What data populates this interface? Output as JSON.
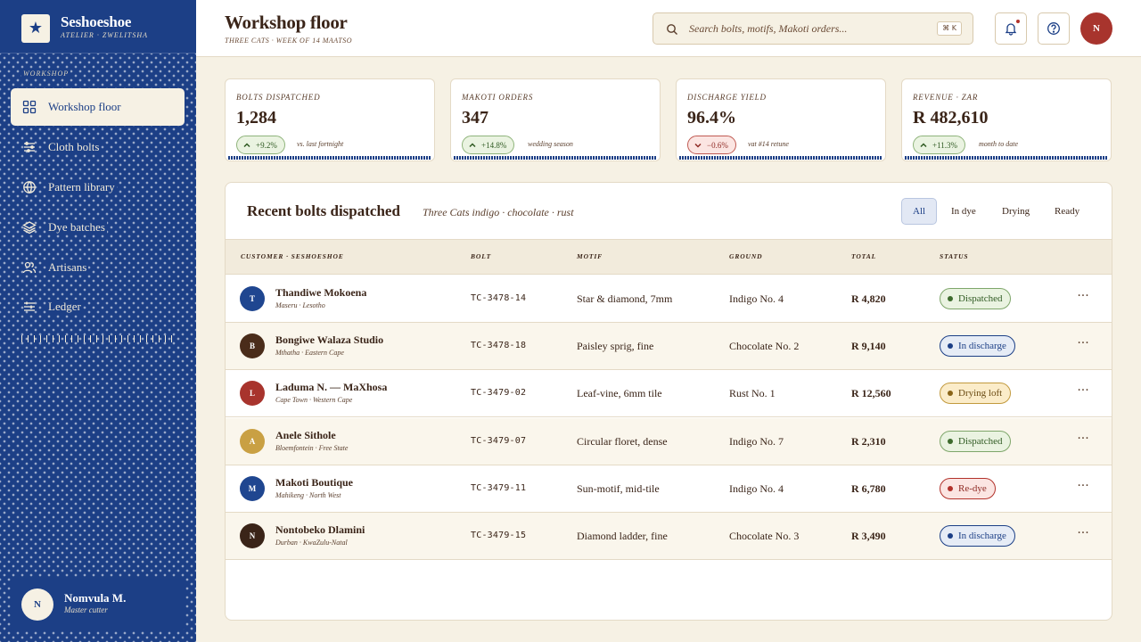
{
  "brand": {
    "name": "Seshoeshoe",
    "subtitle": "ATELIER · ZWELITSHA",
    "logo_icon": "star-icon"
  },
  "sidebar": {
    "section": "WORKSHOP",
    "items": [
      {
        "label": "Workshop floor",
        "icon": "grid-icon",
        "active": true
      },
      {
        "label": "Cloth bolts",
        "icon": "bolts-icon",
        "active": false
      },
      {
        "label": "Pattern library",
        "icon": "globe-icon",
        "active": false
      },
      {
        "label": "Dye batches",
        "icon": "layers-icon",
        "active": false
      },
      {
        "label": "Artisans",
        "icon": "users-icon",
        "active": false
      },
      {
        "label": "Ledger",
        "icon": "ledger-icon",
        "active": false
      }
    ],
    "profile": {
      "initial": "N",
      "name": "Nomvula M.",
      "role": "Master cutter"
    }
  },
  "header": {
    "title": "Workshop floor",
    "subtitle": "THREE CATS · WEEK OF 14 MAATSO",
    "search_placeholder": "Search bolts, motifs, Makoti orders...",
    "shortcut": "⌘ K",
    "user_initial": "N"
  },
  "stats": [
    {
      "label": "BOLTS DISPATCHED",
      "value": "1,284",
      "delta": "+9.2%",
      "direction": "up",
      "note": "vs. last fortnight"
    },
    {
      "label": "MAKOTI ORDERS",
      "value": "347",
      "delta": "+14.8%",
      "direction": "up",
      "note": "wedding season"
    },
    {
      "label": "DISCHARGE YIELD",
      "value": "96.4%",
      "delta": "−0.6%",
      "direction": "down",
      "note": "vat #14 retune"
    },
    {
      "label": "REVENUE · ZAR",
      "value": "R 482,610",
      "delta": "+11.3%",
      "direction": "up",
      "note": "month to date"
    }
  ],
  "table": {
    "title": "Recent bolts dispatched",
    "subtitle": "Three Cats indigo · chocolate · rust",
    "filters": [
      "All",
      "In dye",
      "Drying",
      "Ready"
    ],
    "active_filter": "All",
    "columns": [
      "CUSTOMER · SESHOESHOE",
      "BOLT",
      "MOTIF",
      "GROUND",
      "TOTAL",
      "STATUS"
    ],
    "rows": [
      {
        "initial": "T",
        "avatar_color": "#1f4690",
        "name": "Thandiwe Mokoena",
        "location": "Maseru · Lesotho",
        "bolt": "TC-3478-14",
        "motif": "Star & diamond, 7mm",
        "ground": "Indigo No. 4",
        "total": "R 4,820",
        "status": "Dispatched",
        "status_kind": "green"
      },
      {
        "initial": "B",
        "avatar_color": "#4a2c1a",
        "name": "Bongiwe Walaza Studio",
        "location": "Mthatha · Eastern Cape",
        "bolt": "TC-3478-18",
        "motif": "Paisley sprig, fine",
        "ground": "Chocolate No. 2",
        "total": "R 9,140",
        "status": "In discharge",
        "status_kind": "blue"
      },
      {
        "initial": "L",
        "avatar_color": "#a8342d",
        "name": "Laduma N. — MaXhosa",
        "location": "Cape Town · Western Cape",
        "bolt": "TC-3479-02",
        "motif": "Leaf-vine, 6mm tile",
        "ground": "Rust No. 1",
        "total": "R 12,560",
        "status": "Drying loft",
        "status_kind": "yellow"
      },
      {
        "initial": "A",
        "avatar_color": "#c9a043",
        "name": "Anele Sithole",
        "location": "Bloemfontein · Free State",
        "bolt": "TC-3479-07",
        "motif": "Circular floret, dense",
        "ground": "Indigo No. 7",
        "total": "R 2,310",
        "status": "Dispatched",
        "status_kind": "green"
      },
      {
        "initial": "M",
        "avatar_color": "#1f4690",
        "name": "Makoti Boutique",
        "location": "Mahikeng · North West",
        "bolt": "TC-3479-11",
        "motif": "Sun-motif, mid-tile",
        "ground": "Indigo No. 4",
        "total": "R 6,780",
        "status": "Re-dye",
        "status_kind": "red"
      },
      {
        "initial": "N",
        "avatar_color": "#3a2418",
        "name": "Nontobeko Dlamini",
        "location": "Durban · KwaZulu-Natal",
        "bolt": "TC-3479-15",
        "motif": "Diamond ladder, fine",
        "ground": "Chocolate No. 3",
        "total": "R 3,490",
        "status": "In discharge",
        "status_kind": "blue"
      }
    ]
  },
  "colors": {
    "indigo": "#1c3f86",
    "chocolate": "#3a2418",
    "rust": "#a8342d",
    "cream": "#f6f1e4"
  }
}
